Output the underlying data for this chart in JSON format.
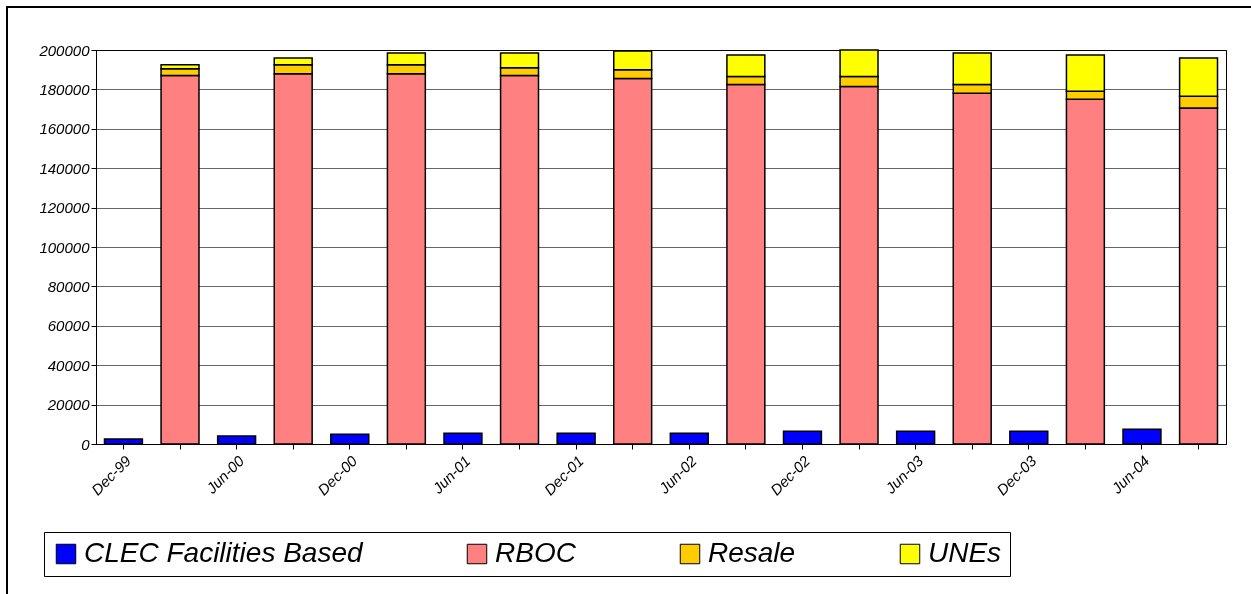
{
  "chart_data": {
    "type": "bar",
    "stacked": true,
    "categories": [
      "Dec-99",
      null,
      "Jun-00",
      null,
      "Dec-00",
      null,
      "Jun-01",
      null,
      "Dec-01",
      null,
      "Jun-02",
      null,
      "Dec-02",
      null,
      "Jun-03",
      null,
      "Dec-03",
      null,
      "Jun-04",
      null
    ],
    "series": [
      {
        "name": "CLEC Facilities Based",
        "color": "#0000ff",
        "values": [
          2500,
          null,
          4000,
          null,
          5000,
          null,
          5500,
          null,
          5500,
          null,
          5500,
          null,
          6500,
          null,
          6500,
          null,
          6500,
          null,
          7500,
          null
        ]
      },
      {
        "name": "RBOC",
        "color": "#ff8080",
        "values": [
          null,
          187000,
          null,
          188000,
          null,
          188000,
          null,
          187000,
          null,
          185500,
          null,
          182500,
          null,
          181500,
          null,
          178000,
          null,
          175000,
          null,
          170500
        ]
      },
      {
        "name": "Resale",
        "color": "#ffcc00",
        "values": [
          null,
          3500,
          null,
          4500,
          null,
          4500,
          null,
          4000,
          null,
          4500,
          null,
          4000,
          null,
          5000,
          null,
          4500,
          null,
          4000,
          null,
          6000
        ]
      },
      {
        "name": "UNEs",
        "color": "#ffff00",
        "values": [
          null,
          2000,
          null,
          3500,
          null,
          6000,
          null,
          7500,
          null,
          9500,
          null,
          11000,
          null,
          13500,
          null,
          16000,
          null,
          18500,
          null,
          19500
        ]
      }
    ],
    "ylim": [
      0,
      200000
    ],
    "yticks": [
      0,
      20000,
      40000,
      60000,
      80000,
      100000,
      120000,
      140000,
      160000,
      180000,
      200000
    ],
    "grid": "y",
    "legend": "bottom"
  }
}
